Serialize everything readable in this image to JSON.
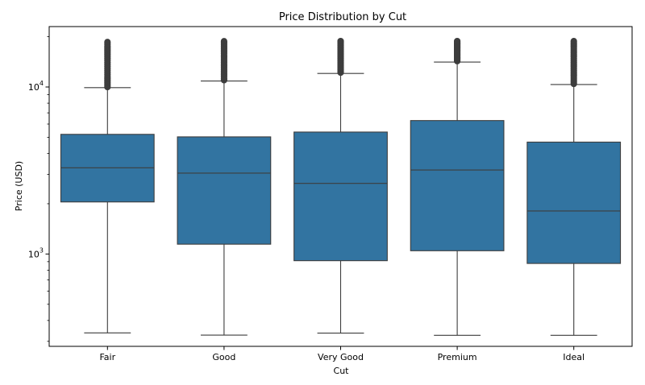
{
  "chart_data": {
    "type": "box",
    "title": "Price Distribution by Cut",
    "xlabel": "Cut",
    "ylabel": "Price (USD)",
    "yscale": "log",
    "ylim": [
      280,
      23000
    ],
    "y_ticks": [
      {
        "value": 1000,
        "base": "10",
        "exp": "3"
      },
      {
        "value": 10000,
        "base": "10",
        "exp": "4"
      }
    ],
    "grid": false,
    "box_color": "#3274a1",
    "edge_color": "#3d3d3d",
    "categories": [
      "Fair",
      "Good",
      "Very Good",
      "Premium",
      "Ideal"
    ],
    "boxes": [
      {
        "category": "Fair",
        "min": 337,
        "q1": 2050,
        "median": 3282,
        "q3": 5206,
        "whisker_high": 9913,
        "outliers_from": 10000,
        "max": 18574
      },
      {
        "category": "Good",
        "min": 327,
        "q1": 1145,
        "median": 3050,
        "q3": 5028,
        "whisker_high": 10860,
        "outliers_from": 11000,
        "max": 18788
      },
      {
        "category": "Very Good",
        "min": 336,
        "q1": 912,
        "median": 2648,
        "q3": 5373,
        "whisker_high": 12050,
        "outliers_from": 12200,
        "max": 18818
      },
      {
        "category": "Premium",
        "min": 326,
        "q1": 1046,
        "median": 3185,
        "q3": 6296,
        "whisker_high": 14100,
        "outliers_from": 14300,
        "max": 18823
      },
      {
        "category": "Ideal",
        "min": 326,
        "q1": 878,
        "median": 1810,
        "q3": 4678,
        "whisker_high": 10350,
        "outliers_from": 10450,
        "max": 18806
      }
    ]
  }
}
